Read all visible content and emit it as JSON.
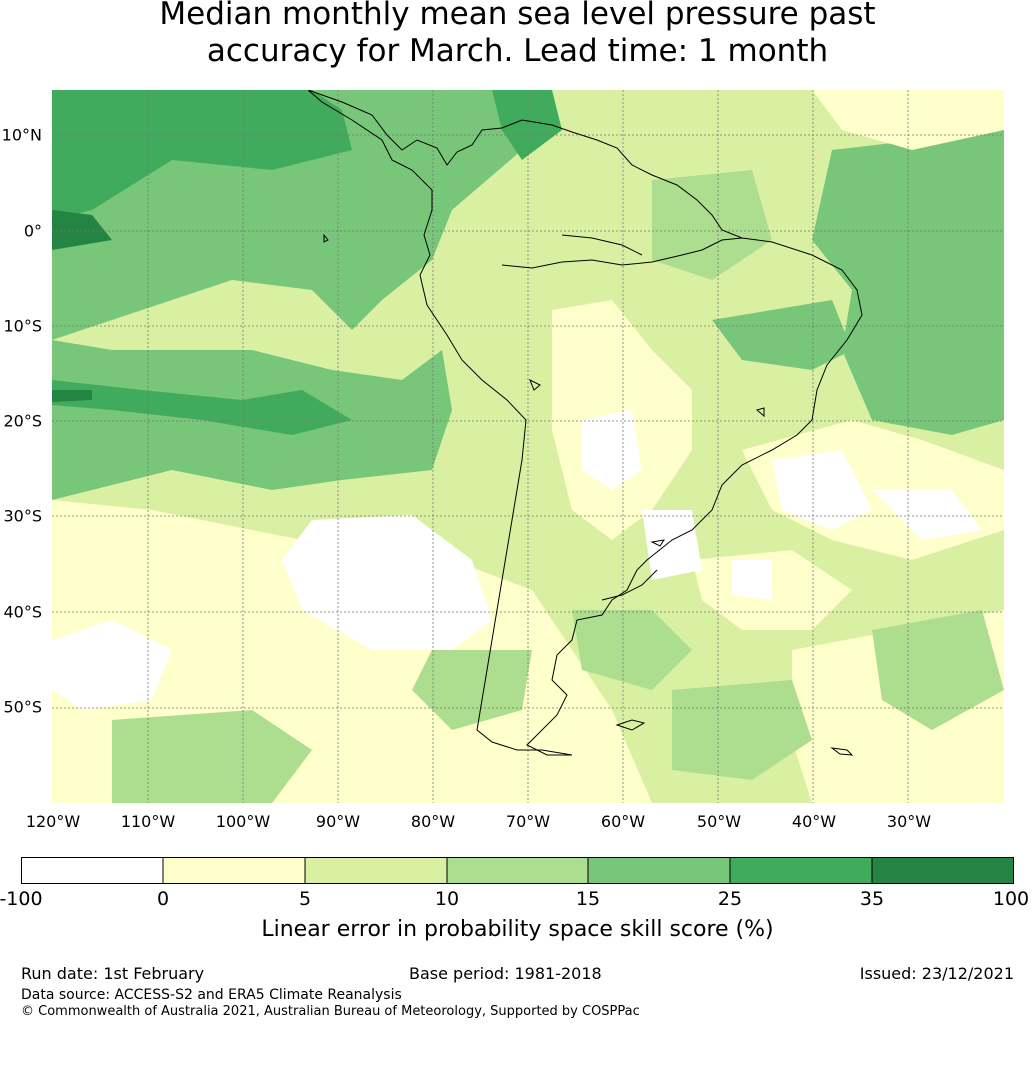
{
  "title_line1": "Median monthly mean sea level pressure past",
  "title_line2": "accuracy for March. Lead time: 1 month",
  "lat_labels": [
    "10°N",
    "0°",
    "10°S",
    "20°S",
    "30°S",
    "40°S",
    "50°S"
  ],
  "lon_labels": [
    "120°W",
    "110°W",
    "100°W",
    "90°W",
    "80°W",
    "70°W",
    "60°W",
    "50°W",
    "40°W",
    "30°W"
  ],
  "colorbar": {
    "ticks": [
      "-100",
      "0",
      "5",
      "10",
      "15",
      "25",
      "35",
      "100"
    ],
    "colors": [
      "#ffffff",
      "#ffffcc",
      "#d9f0a3",
      "#addd8e",
      "#78c679",
      "#41ab5d",
      "#238443"
    ],
    "label": "Linear error in probability space skill score (%)"
  },
  "footer": {
    "run_date": "Run date: 1st February",
    "base_period": "Base period: 1981-2018",
    "issued": "Issued: 23/12/2021",
    "data_source": "Data source: ACCESS-S2 and ERA5 Climate Reanalysis",
    "copyright": "© Commonwealth of Australia 2021, Australian Bureau of Meteorology, Supported by COSPPac"
  }
}
